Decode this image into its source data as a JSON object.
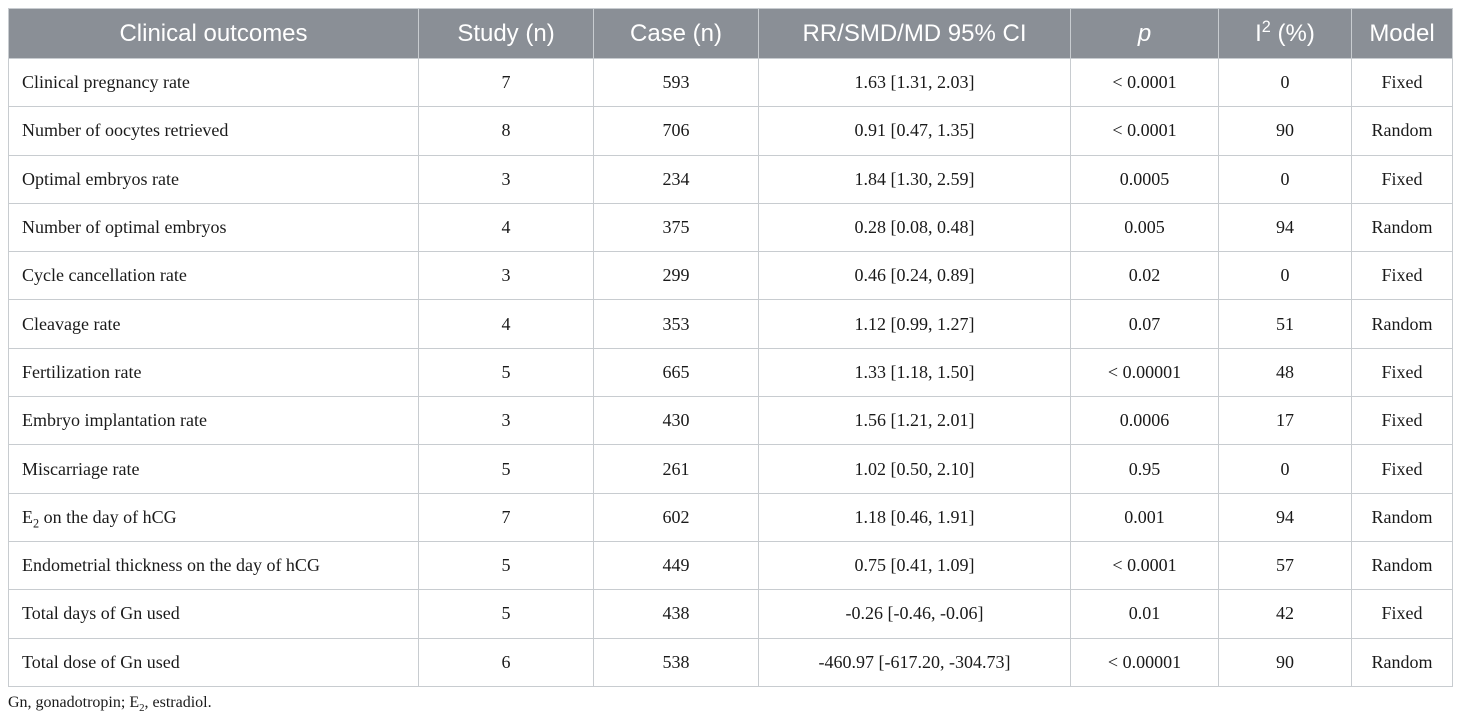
{
  "header": {
    "outcome": "Clinical outcomes",
    "study": "Study (n)",
    "case": "Case (n)",
    "ci": "RR/SMD/MD 95% CI",
    "p": "p",
    "i2_base": "I",
    "i2_sup": "2",
    "i2_rest": " (%)",
    "model": "Model"
  },
  "rows": [
    {
      "outcome": "Clinical pregnancy rate",
      "study": "7",
      "case": "593",
      "ci": "1.63 [1.31, 2.03]",
      "p": "< 0.0001",
      "i2": "0",
      "model": "Fixed"
    },
    {
      "outcome": "Number of oocytes retrieved",
      "study": "8",
      "case": "706",
      "ci": "0.91 [0.47, 1.35]",
      "p": "< 0.0001",
      "i2": "90",
      "model": "Random"
    },
    {
      "outcome": "Optimal embryos rate",
      "study": "3",
      "case": "234",
      "ci": "1.84 [1.30, 2.59]",
      "p": "0.0005",
      "i2": "0",
      "model": "Fixed"
    },
    {
      "outcome": "Number of optimal embryos",
      "study": "4",
      "case": "375",
      "ci": "0.28 [0.08, 0.48]",
      "p": "0.005",
      "i2": "94",
      "model": "Random"
    },
    {
      "outcome": "Cycle cancellation rate",
      "study": "3",
      "case": "299",
      "ci": "0.46 [0.24, 0.89]",
      "p": "0.02",
      "i2": "0",
      "model": "Fixed"
    },
    {
      "outcome": "Cleavage rate",
      "study": "4",
      "case": "353",
      "ci": "1.12 [0.99, 1.27]",
      "p": "0.07",
      "i2": "51",
      "model": "Random"
    },
    {
      "outcome": "Fertilization rate",
      "study": "5",
      "case": "665",
      "ci": "1.33 [1.18, 1.50]",
      "p": "< 0.00001",
      "i2": "48",
      "model": "Fixed"
    },
    {
      "outcome": "Embryo implantation rate",
      "study": "3",
      "case": "430",
      "ci": "1.56 [1.21, 2.01]",
      "p": "0.0006",
      "i2": "17",
      "model": "Fixed"
    },
    {
      "outcome": "Miscarriage rate",
      "study": "5",
      "case": "261",
      "ci": "1.02 [0.50, 2.10]",
      "p": "0.95",
      "i2": "0",
      "model": "Fixed"
    },
    {
      "outcome_pre": "E",
      "outcome_sub": "2",
      "outcome_post": " on the day of hCG",
      "study": "7",
      "case": "602",
      "ci": "1.18 [0.46, 1.91]",
      "p": "0.001",
      "i2": "94",
      "model": "Random"
    },
    {
      "outcome": "Endometrial thickness on the day of hCG",
      "study": "5",
      "case": "449",
      "ci": "0.75 [0.41, 1.09]",
      "p": "< 0.0001",
      "i2": "57",
      "model": "Random"
    },
    {
      "outcome": "Total days of Gn used",
      "study": "5",
      "case": "438",
      "ci": "-0.26 [-0.46, -0.06]",
      "p": "0.01",
      "i2": "42",
      "model": "Fixed"
    },
    {
      "outcome": "Total dose of Gn used",
      "study": "6",
      "case": "538",
      "ci": "-460.97 [-617.20, -304.73]",
      "p": "< 0.00001",
      "i2": "90",
      "model": "Random"
    }
  ],
  "footnote": {
    "part1": "Gn, gonadotropin; E",
    "sub": "2",
    "part2": ", estradiol."
  }
}
